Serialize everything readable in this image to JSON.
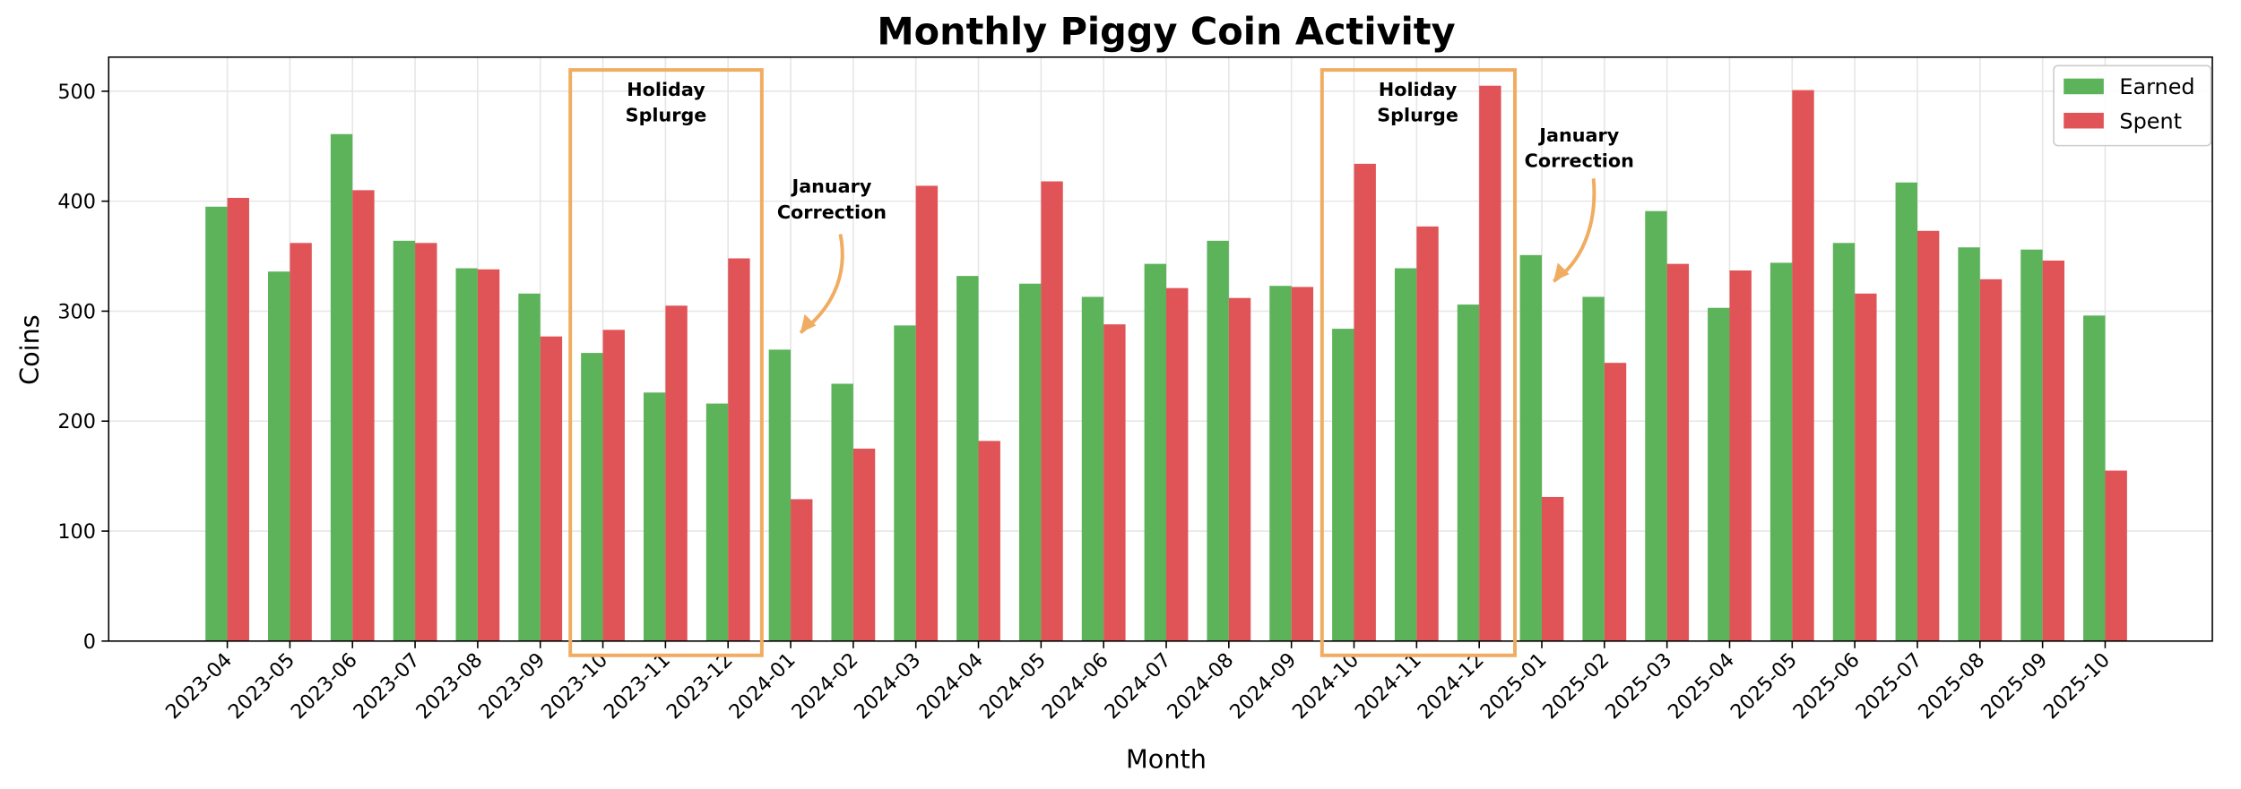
{
  "chart_data": {
    "type": "bar",
    "title": "Monthly Piggy Coin Activity",
    "x_label": "Month",
    "y_label": "Coins",
    "categories": [
      "2023-04",
      "2023-05",
      "2023-06",
      "2023-07",
      "2023-08",
      "2023-09",
      "2023-10",
      "2023-11",
      "2023-12",
      "2024-01",
      "2024-02",
      "2024-03",
      "2024-04",
      "2024-05",
      "2024-06",
      "2024-07",
      "2024-08",
      "2024-09",
      "2024-10",
      "2024-11",
      "2024-12",
      "2025-01",
      "2025-02",
      "2025-03",
      "2025-04",
      "2025-05",
      "2025-06",
      "2025-07",
      "2025-08",
      "2025-09",
      "2025-10"
    ],
    "series": [
      {
        "name": "Earned",
        "color": "#5cb35a",
        "values": [
          395,
          336,
          461,
          364,
          339,
          316,
          262,
          226,
          216,
          265,
          234,
          287,
          332,
          325,
          313,
          343,
          364,
          323,
          284,
          339,
          306,
          351,
          313,
          391,
          303,
          344,
          362,
          417,
          358,
          356,
          296
        ]
      },
      {
        "name": "Spent",
        "color": "#e05457",
        "values": [
          403,
          362,
          410,
          362,
          338,
          277,
          283,
          305,
          348,
          129,
          175,
          414,
          182,
          418,
          288,
          321,
          312,
          322,
          434,
          377,
          505,
          131,
          253,
          343,
          337,
          501,
          316,
          373,
          329,
          346,
          155
        ]
      }
    ],
    "ylim": [
      0,
      531
    ],
    "yticks": [
      0,
      100,
      200,
      300,
      400,
      500
    ],
    "grid": true,
    "legend": "upper right",
    "annotations": [
      {
        "text": [
          "Holiday",
          "Splurge"
        ]
      },
      {
        "text": [
          "January",
          "Correction"
        ]
      },
      {
        "text": [
          "Holiday",
          "Splurge"
        ]
      },
      {
        "text": [
          "January",
          "Correction"
        ]
      }
    ]
  }
}
